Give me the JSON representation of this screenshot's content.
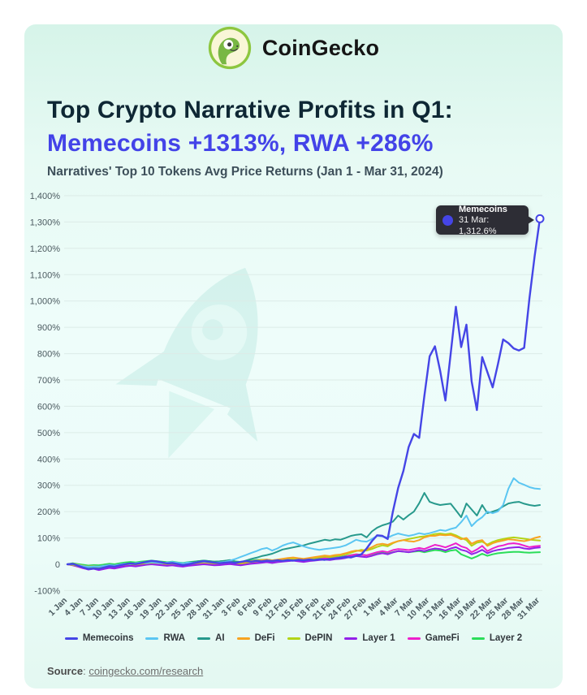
{
  "header": {
    "brand": "CoinGecko"
  },
  "title": {
    "line1": "Top Crypto Narrative Profits in Q1:",
    "line2": "Memecoins +1313%, RWA +286%",
    "subtitle": "Narratives' Top 10 Tokens Avg Price Returns (Jan 1 - Mar 31, 2024)"
  },
  "tooltip": {
    "series": "Memecoins",
    "value_line": "31 Mar: 1,312.6%",
    "dot_color": "#4545e6"
  },
  "source": {
    "label": "Source",
    "link": "coingecko.com/research"
  },
  "chart_data": {
    "type": "line",
    "title": "Narratives' Top 10 Tokens Avg Price Returns (Jan 1 - Mar 31, 2024)",
    "x_days": 91,
    "x_tick_labels": [
      "1 Jan",
      "4 Jan",
      "7 Jan",
      "10 Jan",
      "13 Jan",
      "16 Jan",
      "19 Jan",
      "22 Jan",
      "25 Jan",
      "28 Jan",
      "31 Jan",
      "3 Feb",
      "6 Feb",
      "9 Feb",
      "12 Feb",
      "15 Feb",
      "18 Feb",
      "21 Feb",
      "24 Feb",
      "27 Feb",
      "1 Mar",
      "4 Mar",
      "7 Mar",
      "10 Mar",
      "13 Mar",
      "16 Mar",
      "19 Mar",
      "22 Mar",
      "25 Mar",
      "28 Mar",
      "31 Mar"
    ],
    "ylim": [
      -100,
      1400
    ],
    "y_tick_step": 100,
    "y_unit": "%",
    "grid": true,
    "legend_position": "bottom",
    "end_marker": {
      "series": "Memecoins",
      "day_label": "31 Mar",
      "value": 1312.6
    },
    "series": [
      {
        "name": "Memecoins",
        "color": "#4545e6",
        "values": [
          0,
          2,
          -5,
          -12,
          -18,
          -16,
          -17,
          -12,
          -7,
          -9,
          -4,
          0,
          3,
          1,
          5,
          9,
          13,
          11,
          7,
          3,
          5,
          1,
          -3,
          0,
          4,
          8,
          12,
          9,
          6,
          4,
          6,
          8,
          5,
          9,
          12,
          10,
          13,
          11,
          14,
          12,
          15,
          13,
          16,
          14,
          17,
          15,
          18,
          16,
          19,
          17,
          20,
          22,
          25,
          28,
          26,
          32,
          38,
          60,
          88,
          110,
          108,
          96,
          200,
          290,
          355,
          445,
          495,
          480,
          640,
          790,
          828,
          735,
          622,
          800,
          978,
          825,
          910,
          695,
          586,
          787,
          730,
          672,
          760,
          854,
          840,
          820,
          812,
          822,
          1010,
          1170,
          1312.6
        ]
      },
      {
        "name": "RWA",
        "color": "#5bc6f2",
        "values": [
          0,
          1,
          -3,
          -7,
          -10,
          -8,
          -9,
          -6,
          -3,
          -5,
          -1,
          2,
          1,
          4,
          7,
          5,
          8,
          6,
          4,
          7,
          9,
          6,
          4,
          7,
          5,
          8,
          10,
          8,
          6,
          7,
          9,
          14,
          20,
          28,
          35,
          43,
          50,
          58,
          62,
          52,
          60,
          71,
          78,
          83,
          76,
          68,
          62,
          58,
          55,
          58,
          60,
          63,
          66,
          72,
          82,
          93,
          88,
          86,
          96,
          108,
          106,
          101,
          110,
          117,
          112,
          108,
          112,
          118,
          114,
          118,
          124,
          130,
          127,
          134,
          139,
          160,
          185,
          145,
          165,
          179,
          200,
          194,
          201,
          225,
          287,
          327,
          310,
          302,
          293,
          288,
          286
        ]
      },
      {
        "name": "AI",
        "color": "#27998c",
        "values": [
          0,
          1,
          -4,
          -8,
          -11,
          -9,
          -8,
          -5,
          -2,
          -4,
          0,
          2,
          4,
          3,
          6,
          8,
          10,
          9,
          7,
          5,
          8,
          6,
          4,
          7,
          9,
          12,
          14,
          12,
          10,
          11,
          13,
          16,
          10,
          8,
          14,
          20,
          25,
          31,
          35,
          40,
          48,
          56,
          60,
          64,
          68,
          72,
          78,
          83,
          88,
          93,
          90,
          95,
          93,
          100,
          108,
          112,
          114,
          102,
          125,
          139,
          148,
          154,
          162,
          185,
          170,
          186,
          200,
          232,
          271,
          237,
          230,
          225,
          228,
          230,
          205,
          179,
          231,
          208,
          185,
          225,
          194,
          200,
          207,
          220,
          231,
          235,
          237,
          230,
          225,
          222,
          225
        ]
      },
      {
        "name": "DeFi",
        "color": "#f7a321",
        "values": [
          0,
          2,
          -2,
          -6,
          -9,
          -7,
          -8,
          -5,
          -2,
          -4,
          0,
          2,
          3,
          1,
          4,
          6,
          8,
          7,
          5,
          3,
          5,
          2,
          0,
          3,
          5,
          7,
          9,
          7,
          5,
          6,
          8,
          10,
          8,
          6,
          9,
          12,
          14,
          16,
          18,
          15,
          18,
          21,
          24,
          26,
          23,
          21,
          24,
          27,
          30,
          33,
          31,
          35,
          37,
          42,
          48,
          52,
          50,
          56,
          65,
          75,
          78,
          74,
          82,
          88,
          92,
          88,
          86,
          92,
          102,
          108,
          108,
          112,
          110,
          112,
          105,
          95,
          100,
          78,
          88,
          92,
          70,
          80,
          86,
          90,
          95,
          93,
          90,
          88,
          92,
          100,
          105
        ]
      },
      {
        "name": "DePIN",
        "color": "#b3d416",
        "values": [
          0,
          -2,
          -6,
          -10,
          -14,
          -12,
          -13,
          -9,
          -6,
          -8,
          -4,
          -1,
          1,
          -1,
          2,
          4,
          6,
          5,
          3,
          1,
          3,
          0,
          -2,
          1,
          3,
          5,
          7,
          5,
          3,
          4,
          6,
          8,
          5,
          3,
          6,
          9,
          11,
          13,
          15,
          12,
          15,
          18,
          20,
          22,
          19,
          17,
          20,
          23,
          26,
          29,
          27,
          31,
          34,
          38,
          44,
          50,
          55,
          52,
          58,
          66,
          72,
          68,
          80,
          88,
          92,
          96,
          100,
          104,
          106,
          110,
          115,
          117,
          114,
          117,
          110,
          100,
          92,
          70,
          82,
          86,
          75,
          85,
          92,
          96,
          100,
          102,
          100,
          97,
          94,
          92,
          90
        ]
      },
      {
        "name": "Layer 1",
        "color": "#9320e9",
        "values": [
          0,
          -3,
          -8,
          -14,
          -20,
          -17,
          -22,
          -18,
          -14,
          -16,
          -12,
          -8,
          -6,
          -8,
          -5,
          -2,
          0,
          -2,
          -4,
          -6,
          -4,
          -7,
          -9,
          -6,
          -4,
          -2,
          0,
          -2,
          -4,
          -3,
          -1,
          1,
          -2,
          -4,
          -1,
          2,
          4,
          6,
          8,
          5,
          8,
          10,
          12,
          14,
          11,
          9,
          12,
          14,
          16,
          18,
          16,
          19,
          21,
          24,
          28,
          31,
          29,
          27,
          32,
          38,
          42,
          38,
          45,
          50,
          48,
          46,
          50,
          54,
          50,
          56,
          60,
          58,
          52,
          60,
          65,
          55,
          50,
          38,
          45,
          55,
          42,
          50,
          55,
          58,
          62,
          64,
          65,
          60,
          58,
          62,
          64
        ]
      },
      {
        "name": "GameFi",
        "color": "#ee1fcb",
        "values": [
          0,
          -4,
          -9,
          -15,
          -19,
          -16,
          -18,
          -13,
          -10,
          -12,
          -8,
          -5,
          -3,
          -5,
          -2,
          0,
          2,
          0,
          -2,
          -4,
          -2,
          -5,
          -7,
          -4,
          -2,
          0,
          2,
          0,
          -2,
          -1,
          1,
          3,
          0,
          -2,
          2,
          5,
          7,
          9,
          11,
          8,
          11,
          14,
          16,
          18,
          15,
          13,
          16,
          18,
          20,
          23,
          21,
          24,
          26,
          30,
          34,
          38,
          36,
          34,
          40,
          46,
          50,
          46,
          54,
          58,
          56,
          54,
          58,
          62,
          58,
          66,
          74,
          70,
          64,
          72,
          80,
          68,
          62,
          46,
          56,
          70,
          50,
          60,
          68,
          72,
          78,
          80,
          77,
          71,
          65,
          68,
          70
        ]
      },
      {
        "name": "Layer 2",
        "color": "#2bdd59",
        "values": [
          0,
          4,
          1,
          -2,
          -5,
          -3,
          -4,
          -1,
          2,
          0,
          4,
          7,
          9,
          7,
          10,
          12,
          14,
          12,
          10,
          8,
          10,
          7,
          5,
          8,
          10,
          12,
          14,
          12,
          10,
          11,
          13,
          14,
          11,
          9,
          12,
          14,
          16,
          17,
          18,
          15,
          17,
          19,
          21,
          22,
          20,
          18,
          20,
          22,
          24,
          26,
          24,
          26,
          28,
          31,
          35,
          38,
          36,
          34,
          38,
          42,
          44,
          40,
          46,
          50,
          48,
          46,
          48,
          50,
          46,
          50,
          54,
          52,
          46,
          52,
          55,
          38,
          30,
          22,
          30,
          40,
          32,
          38,
          42,
          44,
          46,
          47,
          47,
          45,
          44,
          45,
          46
        ]
      }
    ]
  }
}
